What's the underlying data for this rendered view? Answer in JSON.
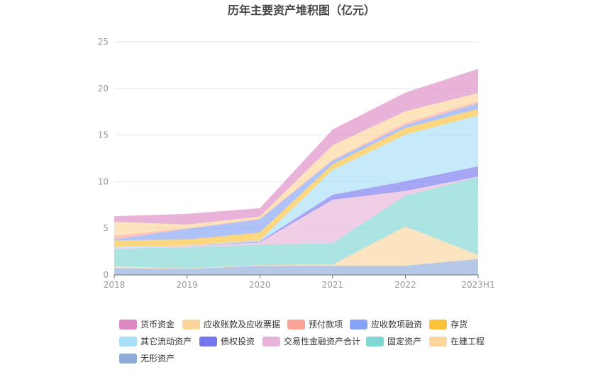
{
  "chart_data": {
    "type": "area",
    "stacked": true,
    "title": "历年主要资产堆积图（亿元）",
    "xlabel": "",
    "ylabel": "",
    "ylim": [
      0,
      25
    ],
    "yticks": [
      "0",
      "5",
      "10",
      "15",
      "20",
      "25"
    ],
    "grid": true,
    "legend_position": "bottom",
    "categories": [
      "2018",
      "2019",
      "2020",
      "2021",
      "2022",
      "2023H1"
    ],
    "series": [
      {
        "name": "无形资产",
        "color": "#8fabda",
        "values": [
          0.75,
          0.65,
          1.0,
          1.0,
          1.0,
          1.7
        ]
      },
      {
        "name": "在建工程",
        "color": "#fcd59e",
        "values": [
          0.15,
          0.05,
          0.05,
          0.1,
          4.2,
          0.45
        ]
      },
      {
        "name": "固定资产",
        "color": "#7fd6d4",
        "values": [
          1.9,
          2.25,
          2.2,
          2.3,
          3.3,
          8.35
        ]
      },
      {
        "name": "交易性金融资产合计",
        "color": "#e8b3d8",
        "values": [
          0.05,
          0.15,
          0.25,
          4.65,
          0.5,
          0.05
        ]
      },
      {
        "name": "债权投资",
        "color": "#7476ee",
        "values": [
          0,
          0,
          0.1,
          0.55,
          1.05,
          1.1
        ]
      },
      {
        "name": "其它流动资产",
        "color": "#a8def7",
        "values": [
          0.15,
          0.05,
          0.1,
          2.65,
          5.0,
          5.45
        ]
      },
      {
        "name": "存货",
        "color": "#fbc23c",
        "values": [
          0.7,
          0.65,
          0.85,
          0.6,
          0.7,
          0.7
        ]
      },
      {
        "name": "应收款项融资",
        "color": "#86a3f4",
        "values": [
          0.1,
          1.15,
          1.4,
          0.4,
          0.3,
          0.6
        ]
      },
      {
        "name": "预付款项",
        "color": "#f9a394",
        "values": [
          0.4,
          0.05,
          0.1,
          0.1,
          0.25,
          0.2
        ]
      },
      {
        "name": "应收账款及应收票据",
        "color": "#fdd59a",
        "values": [
          1.5,
          0.4,
          0.2,
          1.55,
          1.25,
          0.9
        ]
      },
      {
        "name": "货币资金",
        "color": "#dd88c3",
        "values": [
          0.6,
          1.15,
          0.9,
          1.7,
          2.0,
          2.6
        ]
      }
    ],
    "legend_order": [
      "货币资金",
      "应收账款及应收票据",
      "预付款项",
      "应收款项融资",
      "存货",
      "其它流动资产",
      "债权投资",
      "交易性金融资产合计",
      "固定资产",
      "在建工程",
      "无形资产"
    ]
  }
}
